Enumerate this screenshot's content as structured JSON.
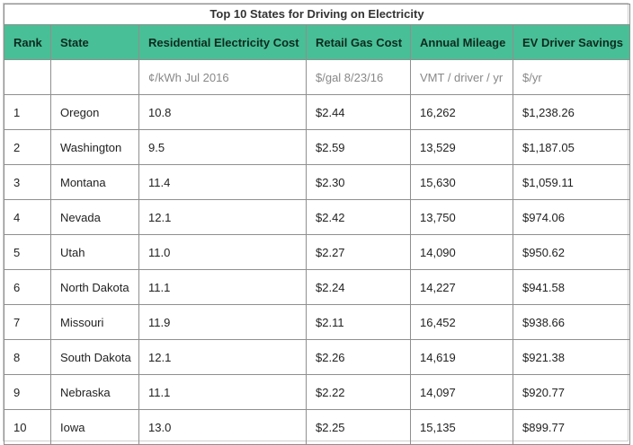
{
  "title": "Top 10 States for Driving on Electricity",
  "columns": [
    "Rank",
    "State",
    "Residential Electricity Cost",
    "Retail Gas Cost",
    "Annual Mileage",
    "EV Driver Savings"
  ],
  "units": [
    "",
    "",
    "¢/kWh Jul 2016",
    "$/gal 8/23/16",
    "VMT / driver / yr",
    "$/yr"
  ],
  "rows": [
    [
      "1",
      "Oregon",
      "10.8",
      "$2.44",
      "16,262",
      "$1,238.26"
    ],
    [
      "2",
      "Washington",
      "9.5",
      "$2.59",
      "13,529",
      "$1,187.05"
    ],
    [
      "3",
      "Montana",
      "11.4",
      "$2.30",
      "15,630",
      "$1,059.11"
    ],
    [
      "4",
      "Nevada",
      "12.1",
      "$2.42",
      "13,750",
      "$974.06"
    ],
    [
      "5",
      "Utah",
      "11.0",
      "$2.27",
      "14,090",
      "$950.62"
    ],
    [
      "6",
      "North Dakota",
      "11.1",
      "$2.24",
      "14,227",
      "$941.58"
    ],
    [
      "7",
      "Missouri",
      "11.9",
      "$2.11",
      "16,452",
      "$938.66"
    ],
    [
      "8",
      "South Dakota",
      "12.1",
      "$2.26",
      "14,619",
      "$921.38"
    ],
    [
      "9",
      "Nebraska",
      "11.1",
      "$2.22",
      "14,097",
      "$920.77"
    ],
    [
      "10",
      "Iowa",
      "13.0",
      "$2.25",
      "15,135",
      "$899.77"
    ]
  ],
  "colors": {
    "header_bg": "#48bf96",
    "border": "#8f8f8f",
    "unit_text": "#888888"
  }
}
